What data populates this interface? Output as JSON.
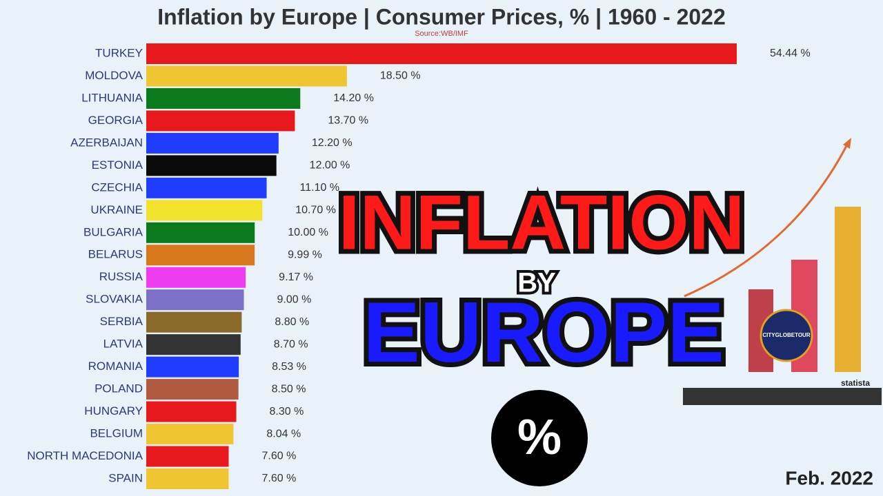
{
  "chart_data": {
    "type": "bar",
    "orientation": "horizontal",
    "title": "Inflation by Europe | Consumer Prices, % | 1960 - 2022",
    "source": "Source:WB/IMF",
    "date_label": "Feb. 2022",
    "categories": [
      "TURKEY",
      "MOLDOVA",
      "LITHUANIA",
      "GEORGIA",
      "AZERBAIJAN",
      "ESTONIA",
      "CZECHIA",
      "UKRAINE",
      "BULGARIA",
      "BELARUS",
      "RUSSIA",
      "SLOVAKIA",
      "SERBIA",
      "LATVIA",
      "ROMANIA",
      "POLAND",
      "HUNGARY",
      "BELGIUM",
      "NORTH MACEDONIA",
      "SPAIN"
    ],
    "values": [
      54.44,
      18.5,
      14.2,
      13.7,
      12.2,
      12.0,
      11.1,
      10.7,
      10.0,
      9.99,
      9.17,
      9.0,
      8.8,
      8.7,
      8.53,
      8.5,
      8.3,
      8.04,
      7.6,
      7.6
    ],
    "value_labels": [
      "54.44 %",
      "18.50 %",
      "14.20 %",
      "13.70 %",
      "12.20 %",
      "12.00 %",
      "11.10 %",
      "10.70 %",
      "10.00 %",
      "9.99 %",
      "9.17 %",
      "9.00 %",
      "8.80 %",
      "8.70 %",
      "8.53 %",
      "8.50 %",
      "8.30 %",
      "8.04 %",
      "7.60 %",
      "7.60 %"
    ],
    "colors": [
      "#e8191c",
      "#efc631",
      "#0b7a1c",
      "#e8191c",
      "#1f3cff",
      "#0a0a0a",
      "#1f3cff",
      "#f2e22e",
      "#0b7a1c",
      "#d9771c",
      "#f03cf0",
      "#7b70c6",
      "#8a6a2a",
      "#333333",
      "#1f3cff",
      "#b05a42",
      "#e8191c",
      "#efc631",
      "#e8191c",
      "#efc631"
    ],
    "annotations": {
      "headline_1": "INFLATION",
      "headline_2": "BY",
      "headline_3": "EUROPE",
      "badge": "%",
      "logo": "CITYGLOBETOUR",
      "brand": "statista"
    }
  }
}
